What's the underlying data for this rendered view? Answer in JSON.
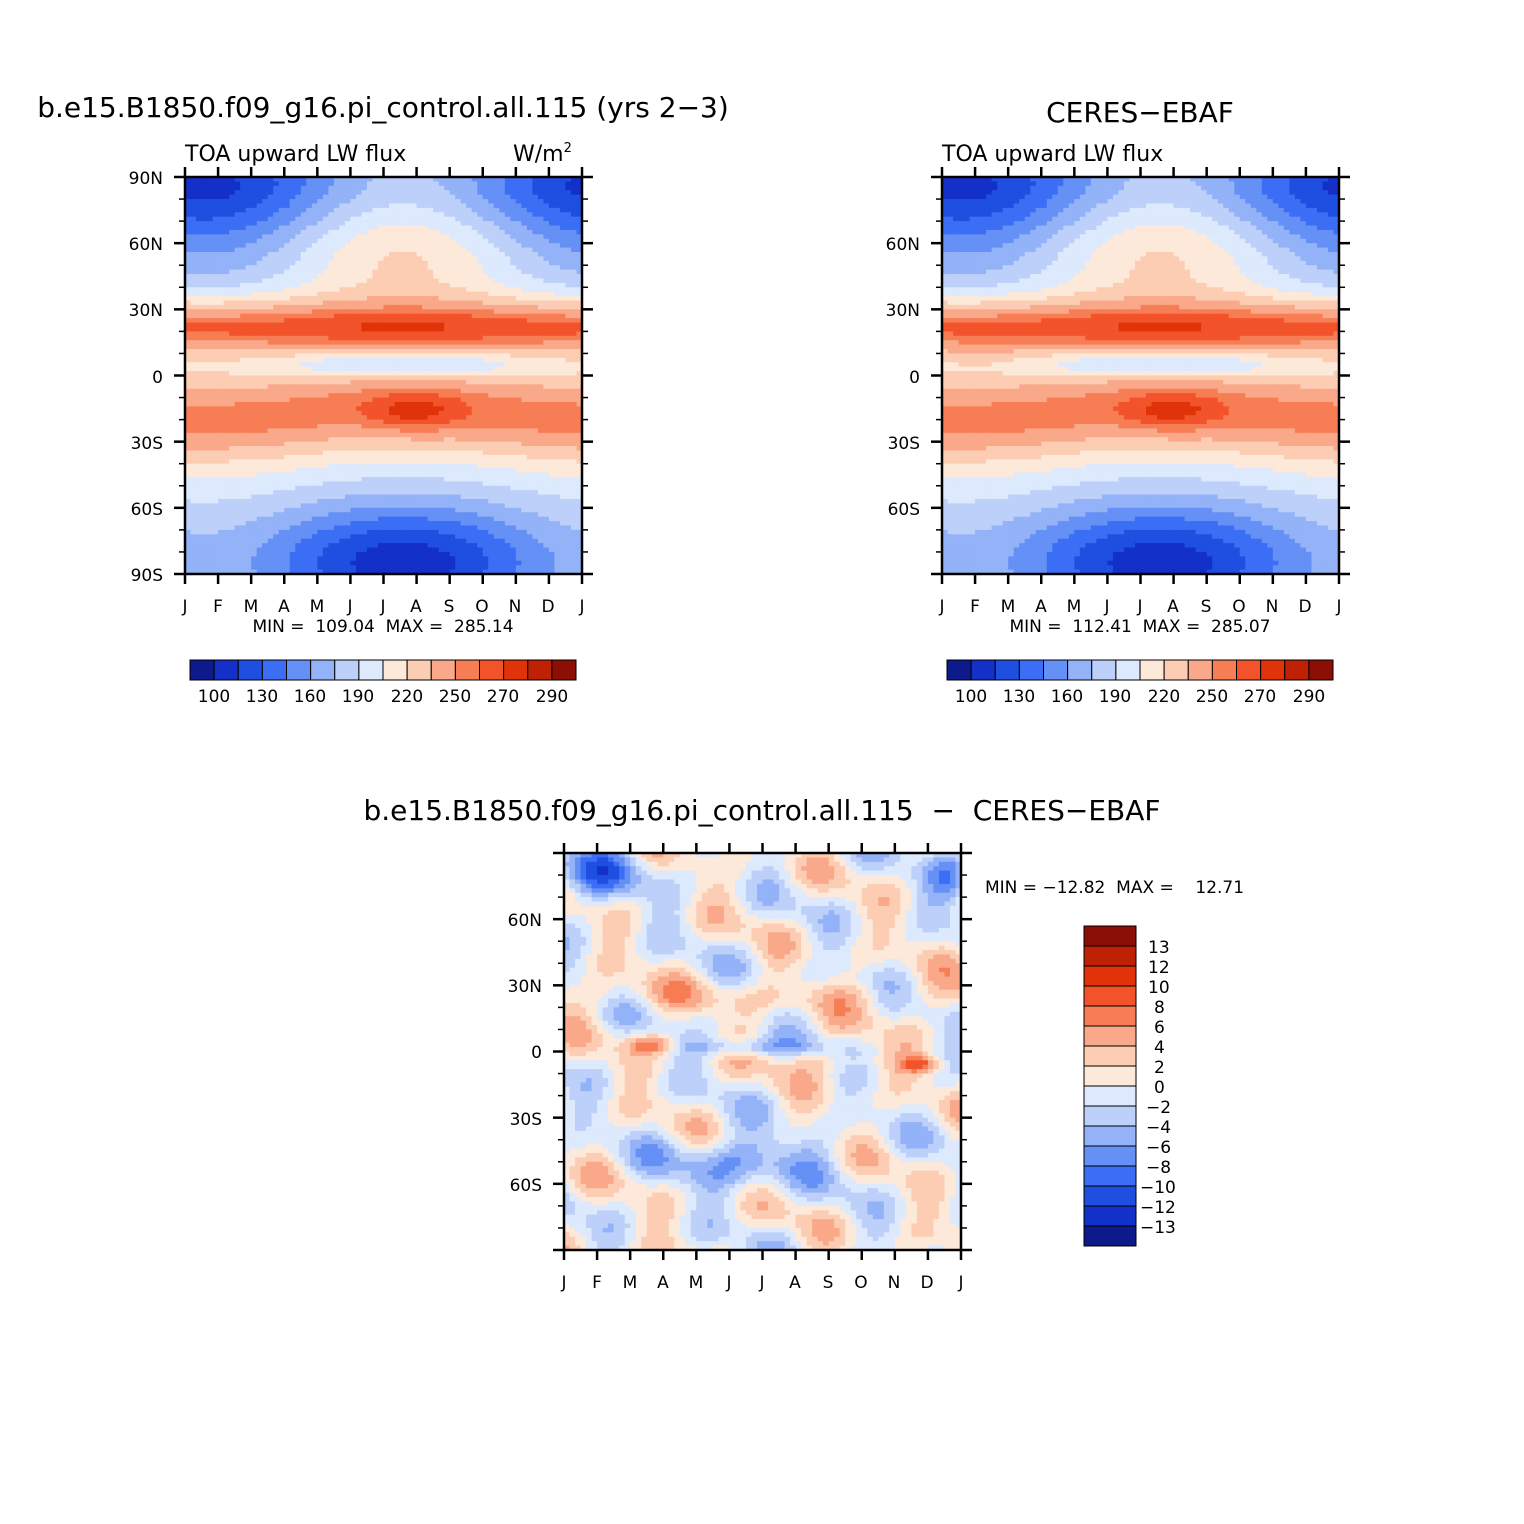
{
  "chart_data": [
    {
      "type": "heatmap",
      "title": "b.e15.B1850.f09_g16.pi_control.all.115 (yrs 2−3)",
      "left_label": "TOA upward LW flux",
      "right_label": "W/m",
      "right_label_sup": "2",
      "x_ticks": [
        "J",
        "F",
        "M",
        "A",
        "M",
        "J",
        "J",
        "A",
        "S",
        "O",
        "N",
        "D",
        "J"
      ],
      "y_ticks": [
        "90N",
        "60N",
        "30N",
        "0",
        "30S",
        "60S",
        "90S"
      ],
      "ylim": [
        -90,
        90
      ],
      "stats": "MIN =  109.04  MAX =  285.14",
      "colorbar_labels": [
        "100",
        "130",
        "160",
        "190",
        "220",
        "250",
        "270",
        "290"
      ],
      "min": 109.04,
      "max": 285.14
    },
    {
      "type": "heatmap",
      "title": "CERES−EBAF",
      "left_label": "TOA upward LW flux",
      "x_ticks": [
        "J",
        "F",
        "M",
        "A",
        "M",
        "J",
        "J",
        "A",
        "S",
        "O",
        "N",
        "D",
        "J"
      ],
      "y_ticks": [
        "60N",
        "30N",
        "0",
        "30S",
        "60S"
      ],
      "ylim": [
        -90,
        90
      ],
      "stats": "MIN =  112.41  MAX =  285.07",
      "colorbar_labels": [
        "100",
        "130",
        "160",
        "190",
        "220",
        "250",
        "270",
        "290"
      ],
      "min": 112.41,
      "max": 285.07
    },
    {
      "type": "heatmap",
      "title": "b.e15.B1850.f09_g16.pi_control.all.115  −  CERES−EBAF",
      "x_ticks": [
        "J",
        "F",
        "M",
        "A",
        "M",
        "J",
        "J",
        "A",
        "S",
        "O",
        "N",
        "D",
        "J"
      ],
      "y_ticks": [
        "60N",
        "30N",
        "0",
        "30S",
        "60S"
      ],
      "ylim": [
        -90,
        90
      ],
      "stats": "MIN = −12.82  MAX =    12.71",
      "colorbar_labels": [
        "13",
        "12",
        "10",
        "8",
        "6",
        "4",
        "2",
        "0",
        "−2",
        "−4",
        "−6",
        "−8",
        "−10",
        "−12",
        "−13"
      ],
      "min": -12.82,
      "max": 12.71
    }
  ],
  "colors": {
    "seq_palette": [
      "#0d1a8c",
      "#1330c8",
      "#1f4fe0",
      "#3b6ef5",
      "#6590f5",
      "#93b2f7",
      "#bcd0fa",
      "#dde9fc",
      "#fde9d9",
      "#fccdb2",
      "#f9a98a",
      "#f77d55",
      "#f2532a",
      "#e03309",
      "#bf2105",
      "#8b0f05"
    ],
    "diff_palette": [
      "#0d1a8c",
      "#1330c8",
      "#1f4fe0",
      "#3b6ef5",
      "#6590f5",
      "#93b2f7",
      "#bcd0fa",
      "#dde9fc",
      "#fde9d9",
      "#fccdb2",
      "#f9a98a",
      "#f77d55",
      "#f2532a",
      "#e03309",
      "#bf2105",
      "#8b0f05"
    ]
  }
}
